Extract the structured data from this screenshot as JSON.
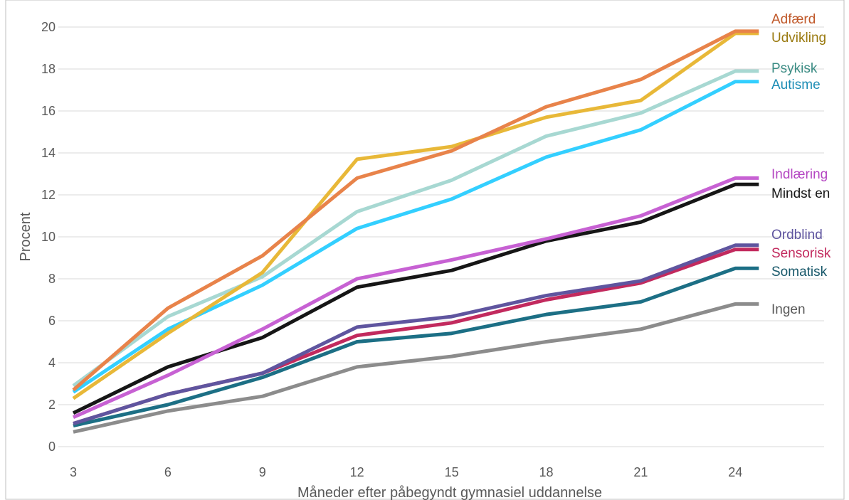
{
  "chart_data": {
    "type": "line",
    "x": [
      3,
      6,
      9,
      12,
      15,
      18,
      21,
      24
    ],
    "xlabel": "Måneder efter påbegyndt gymnasiel uddannelse",
    "ylabel": "Procent",
    "ylim": [
      0,
      20
    ],
    "yticks": [
      0,
      2,
      4,
      6,
      8,
      10,
      12,
      14,
      16,
      18,
      20
    ],
    "grid": true,
    "legend": "direct labels at right end of lines",
    "series": [
      {
        "name": "Adfærd",
        "color": "#e8834a",
        "label_color": "#c0592a",
        "values": [
          2.7,
          6.6,
          9.1,
          12.8,
          14.1,
          16.2,
          17.5,
          19.8
        ]
      },
      {
        "name": "Udvikling",
        "color": "#e8b838",
        "label_color": "#9a7a10",
        "values": [
          2.3,
          5.4,
          8.3,
          13.7,
          14.3,
          15.7,
          16.5,
          19.7
        ]
      },
      {
        "name": "Psykisk",
        "color": "#a7d8d2",
        "label_color": "#3b8c84",
        "values": [
          2.9,
          6.2,
          8.1,
          11.2,
          12.7,
          14.8,
          15.9,
          17.9
        ]
      },
      {
        "name": "Autisme",
        "color": "#33cfff",
        "label_color": "#1c8db5",
        "values": [
          2.6,
          5.6,
          7.7,
          10.4,
          11.8,
          13.8,
          15.1,
          17.4
        ]
      },
      {
        "name": "Indlæring",
        "color": "#c761d3",
        "label_color": "#b446c2",
        "values": [
          1.4,
          3.4,
          5.6,
          8.0,
          8.9,
          9.9,
          11.0,
          12.8
        ]
      },
      {
        "name": "Mindst en",
        "color": "#161616",
        "label_color": "#161616",
        "values": [
          1.6,
          3.8,
          5.2,
          7.6,
          8.4,
          9.8,
          10.7,
          12.5
        ]
      },
      {
        "name": "Ordblind",
        "color": "#5f559f",
        "label_color": "#5f559f",
        "values": [
          1.1,
          2.5,
          3.5,
          5.7,
          6.2,
          7.2,
          7.9,
          9.6
        ]
      },
      {
        "name": "Sensorisk",
        "color": "#c22a5e",
        "label_color": "#c22a5e",
        "values": [
          1.1,
          2.5,
          3.5,
          5.3,
          5.9,
          7.0,
          7.8,
          9.4
        ]
      },
      {
        "name": "Somatisk",
        "color": "#1c6f85",
        "label_color": "#18586a",
        "values": [
          1.0,
          2.0,
          3.3,
          5.0,
          5.4,
          6.3,
          6.9,
          8.5
        ]
      },
      {
        "name": "Ingen",
        "color": "#8c8c8c",
        "label_color": "#595959",
        "values": [
          0.7,
          1.7,
          2.4,
          3.8,
          4.3,
          5.0,
          5.6,
          6.8
        ]
      }
    ]
  }
}
